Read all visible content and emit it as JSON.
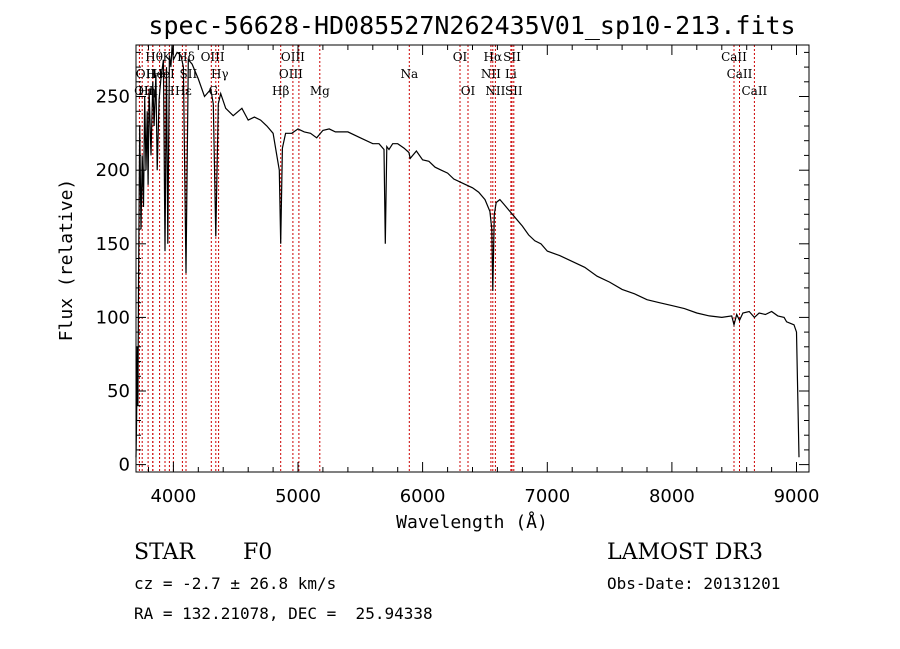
{
  "chart_data": {
    "type": "line",
    "title": "spec-56628-HD085527N262435V01_sp10-213.fits",
    "xlabel": "Wavelength (Å)",
    "ylabel": "Flux (relative)",
    "xlim": [
      3700,
      9100
    ],
    "ylim": [
      -5,
      285
    ],
    "x_ticks": [
      4000,
      5000,
      6000,
      7000,
      8000,
      9000
    ],
    "y_ticks": [
      0,
      50,
      100,
      150,
      200,
      250
    ],
    "series": [
      {
        "name": "spectrum",
        "x": [
          3700,
          3705,
          3710,
          3715,
          3720,
          3730,
          3740,
          3750,
          3760,
          3770,
          3780,
          3790,
          3797,
          3805,
          3820,
          3835,
          3845,
          3860,
          3870,
          3885,
          3900,
          3920,
          3933,
          3945,
          3955,
          3968,
          3980,
          3990,
          4000,
          4030,
          4060,
          4080,
          4101,
          4120,
          4150,
          4200,
          4250,
          4300,
          4320,
          4340,
          4360,
          4380,
          4420,
          4480,
          4550,
          4600,
          4650,
          4700,
          4750,
          4800,
          4830,
          4850,
          4861,
          4875,
          4900,
          4950,
          5000,
          5050,
          5100,
          5150,
          5200,
          5250,
          5300,
          5400,
          5500,
          5600,
          5650,
          5690,
          5700,
          5712,
          5730,
          5760,
          5800,
          5850,
          5890,
          5900,
          5950,
          6000,
          6050,
          6100,
          6150,
          6200,
          6250,
          6300,
          6350,
          6400,
          6450,
          6500,
          6540,
          6555,
          6563,
          6575,
          6590,
          6620,
          6650,
          6700,
          6750,
          6800,
          6850,
          6900,
          6950,
          7000,
          7100,
          7200,
          7300,
          7400,
          7500,
          7600,
          7700,
          7800,
          7900,
          8000,
          8100,
          8200,
          8300,
          8400,
          8480,
          8498,
          8520,
          8542,
          8570,
          8620,
          8662,
          8700,
          8750,
          8800,
          8850,
          8900,
          8920,
          8950,
          8980,
          9000,
          9020
        ],
        "values": [
          5,
          30,
          80,
          40,
          120,
          230,
          160,
          210,
          175,
          250,
          200,
          240,
          190,
          255,
          210,
          260,
          230,
          265,
          200,
          248,
          262,
          275,
          145,
          270,
          150,
          278,
          270,
          285,
          275,
          280,
          278,
          270,
          130,
          275,
          272,
          262,
          250,
          255,
          245,
          155,
          245,
          252,
          242,
          237,
          242,
          234,
          236,
          234,
          230,
          225,
          210,
          200,
          150,
          215,
          225,
          225,
          228,
          226,
          225,
          222,
          227,
          228,
          226,
          226,
          222,
          218,
          218,
          214,
          150,
          216,
          214,
          218,
          218,
          215,
          212,
          208,
          213,
          207,
          206,
          202,
          200,
          198,
          194,
          192,
          190,
          188,
          185,
          180,
          172,
          160,
          118,
          170,
          178,
          180,
          177,
          172,
          167,
          162,
          156,
          152,
          150,
          145,
          142,
          138,
          134,
          128,
          124,
          119,
          116,
          112,
          110,
          108,
          106,
          103,
          101,
          100,
          101,
          95,
          102,
          98,
          103,
          104,
          100,
          103,
          102,
          104,
          101,
          100,
          97,
          96,
          95,
          90,
          5
        ]
      }
    ],
    "lines": [
      {
        "name": "Hθ",
        "wavelength": 3797,
        "row": 1,
        "offset": 6
      },
      {
        "name": "OII",
        "wavelength": 3727,
        "row": 2,
        "offset": 6
      },
      {
        "name": "He",
        "wavelength": 3835,
        "row": 2,
        "offset": 2
      },
      {
        "name": "OIII",
        "wavelength": 3750,
        "row": 3,
        "offset": 4
      },
      {
        "name": "Hη",
        "wavelength": 3835,
        "row": 3,
        "offset": -6
      },
      {
        "name": "K",
        "wavelength": 3933,
        "row": 1,
        "offset": 2
      },
      {
        "name": "HeI",
        "wavelength": 3889,
        "row": 2,
        "offset": 4
      },
      {
        "name": "H",
        "wavelength": 3968,
        "row": 3,
        "offset": 0
      },
      {
        "name": "Hδ",
        "wavelength": 4101,
        "row": 1,
        "offset": 0
      },
      {
        "name": "SII",
        "wavelength": 4072,
        "row": 2,
        "offset": 6
      },
      {
        "name": "Hε",
        "wavelength": 4000,
        "row": 3,
        "offset": 10
      },
      {
        "name": "OIII",
        "wavelength": 4363,
        "row": 1,
        "offset": -6
      },
      {
        "name": "Hγ",
        "wavelength": 4340,
        "row": 2,
        "offset": 4
      },
      {
        "name": "G",
        "wavelength": 4304,
        "row": 3,
        "offset": 2
      },
      {
        "name": "OIII",
        "wavelength": 4959,
        "row": 1,
        "offset": 0
      },
      {
        "name": "OIII",
        "wavelength": 5007,
        "row": 2,
        "offset": -8
      },
      {
        "name": "Hβ",
        "wavelength": 4861,
        "row": 3,
        "offset": 0
      },
      {
        "name": "Mg",
        "wavelength": 5175,
        "row": 3,
        "offset": 0
      },
      {
        "name": "Na",
        "wavelength": 5893,
        "row": 2,
        "offset": 0
      },
      {
        "name": "OI",
        "wavelength": 6300,
        "row": 1,
        "offset": 0
      },
      {
        "name": "OI",
        "wavelength": 6364,
        "row": 3,
        "offset": 0
      },
      {
        "name": "Hα",
        "wavelength": 6563,
        "row": 1,
        "offset": 0
      },
      {
        "name": "NII",
        "wavelength": 6548,
        "row": 2,
        "offset": 0
      },
      {
        "name": "NII",
        "wavelength": 6584,
        "row": 3,
        "offset": 0
      },
      {
        "name": "SII",
        "wavelength": 6717,
        "row": 1,
        "offset": 0
      },
      {
        "name": "Li",
        "wavelength": 6708,
        "row": 2,
        "offset": 0
      },
      {
        "name": "SII",
        "wavelength": 6731,
        "row": 3,
        "offset": 0
      },
      {
        "name": "CaII",
        "wavelength": 8498,
        "row": 1,
        "offset": 0
      },
      {
        "name": "CaII",
        "wavelength": 8542,
        "row": 2,
        "offset": 0
      },
      {
        "name": "CaII",
        "wavelength": 8662,
        "row": 3,
        "offset": 0
      }
    ]
  },
  "info": {
    "object_class": "STAR",
    "subclass": "F0",
    "cz": "cz = -2.7 ± 26.8 km/s",
    "coords": "RA = 132.21078, DEC =  25.94338",
    "survey": "LAMOST DR3",
    "obs_date": "Obs-Date: 20131201"
  },
  "colors": {
    "spectrum": "#000000",
    "line_markers": "#cc0000"
  }
}
